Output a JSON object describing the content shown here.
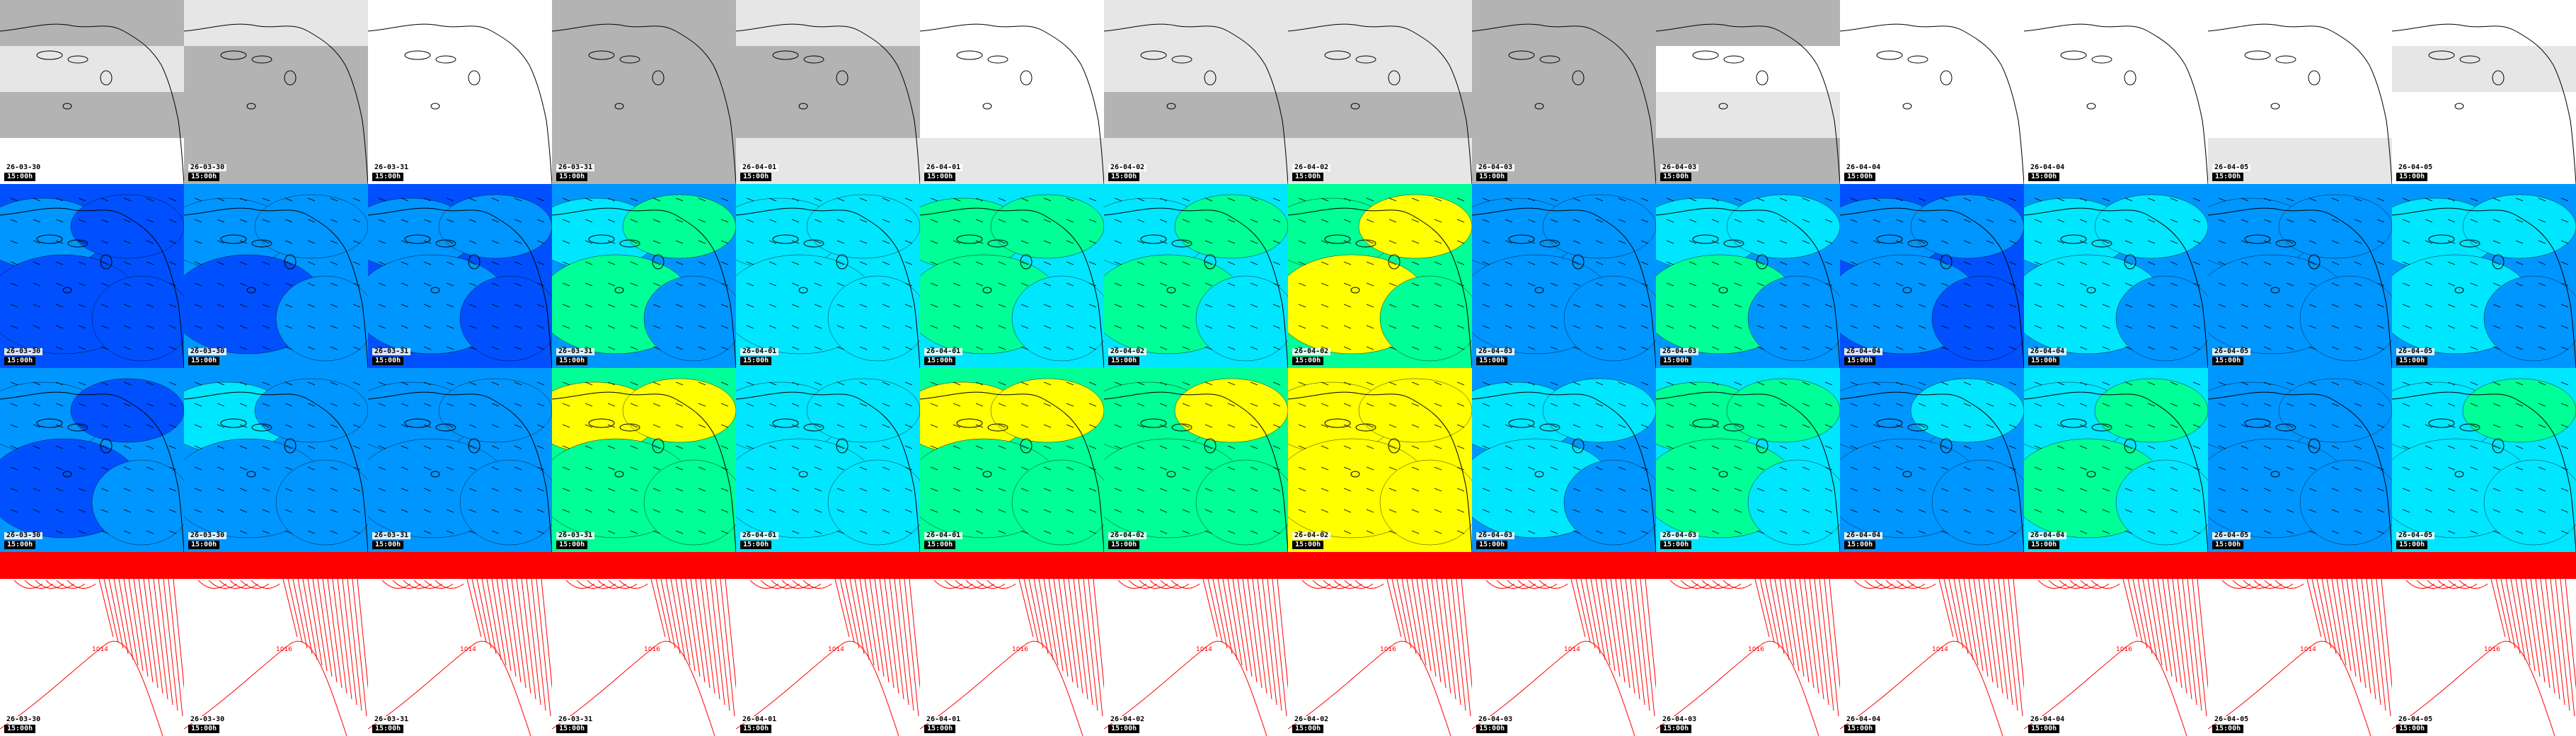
{
  "rows": [
    {
      "name": "cloud-cover",
      "kind": "cloud"
    },
    {
      "name": "wind-speed-10m",
      "kind": "wind"
    },
    {
      "name": "wind-gust",
      "kind": "gust"
    },
    {
      "name": "sea-level-pressure",
      "kind": "pressure"
    }
  ],
  "columns": [
    {
      "date": "26-03-30",
      "time": "15:00h"
    },
    {
      "date": "26-03-30",
      "time": "15:00h"
    },
    {
      "date": "26-03-31",
      "time": "15:00h"
    },
    {
      "date": "26-03-31",
      "time": "15:00h"
    },
    {
      "date": "26-04-01",
      "time": "15:00h"
    },
    {
      "date": "26-04-01",
      "time": "15:00h"
    },
    {
      "date": "26-04-02",
      "time": "15:00h"
    },
    {
      "date": "26-04-02",
      "time": "15:00h"
    },
    {
      "date": "26-04-03",
      "time": "15:00h"
    },
    {
      "date": "26-04-03",
      "time": "15:00h"
    },
    {
      "date": "26-04-04",
      "time": "15:00h"
    },
    {
      "date": "26-04-04",
      "time": "15:00h"
    },
    {
      "date": "26-04-05",
      "time": "15:00h"
    },
    {
      "date": "26-04-05",
      "time": "15:00h"
    }
  ],
  "isobar_labels": [
    "1014",
    "1016"
  ],
  "colors": {
    "cloud_light": "#ffffff",
    "cloud_mid": "#e6e6e6",
    "cloud_dark": "#b3b3b3",
    "wind_deep": "#0000c8",
    "wind_blue": "#0050ff",
    "wind_mid": "#0096ff",
    "wind_cyan": "#00e6ff",
    "wind_green": "#00ff96",
    "wind_yellow": "#ffff00",
    "isobar": "#ff0000",
    "coast": "#000000"
  },
  "wind_levels": [
    [
      1,
      2,
      1,
      2,
      3,
      3,
      3,
      4,
      2,
      2,
      1,
      2,
      2,
      2
    ],
    [
      2,
      2,
      2,
      3,
      3,
      4,
      3,
      4,
      2,
      3,
      2,
      3,
      2,
      3
    ],
    [
      1,
      2,
      2,
      4,
      3,
      4,
      4,
      5,
      2,
      3,
      2,
      3,
      2,
      3
    ],
    [
      1,
      1,
      2,
      4,
      3,
      4,
      4,
      5,
      2,
      4,
      2,
      3,
      2,
      3
    ]
  ],
  "gust_levels": [
    [
      2,
      2,
      2,
      4,
      3,
      4,
      4,
      5,
      2,
      3,
      2,
      3,
      2,
      3
    ],
    [
      2,
      3,
      2,
      5,
      3,
      5,
      4,
      6,
      3,
      4,
      2,
      3,
      2,
      3
    ],
    [
      1,
      2,
      2,
      5,
      3,
      5,
      5,
      6,
      3,
      4,
      3,
      4,
      2,
      4
    ],
    [
      1,
      2,
      2,
      4,
      3,
      4,
      4,
      6,
      3,
      4,
      2,
      4,
      2,
      3
    ]
  ],
  "cloud_levels": [
    [
      2,
      1,
      0,
      2,
      1,
      0,
      1,
      1,
      2,
      2,
      0,
      0,
      0,
      0
    ],
    [
      1,
      2,
      0,
      2,
      2,
      0,
      1,
      1,
      2,
      0,
      0,
      0,
      0,
      1
    ],
    [
      2,
      2,
      0,
      2,
      2,
      0,
      2,
      2,
      2,
      1,
      0,
      0,
      0,
      0
    ],
    [
      0,
      2,
      0,
      2,
      1,
      1,
      1,
      1,
      2,
      2,
      0,
      0,
      1,
      0
    ]
  ]
}
